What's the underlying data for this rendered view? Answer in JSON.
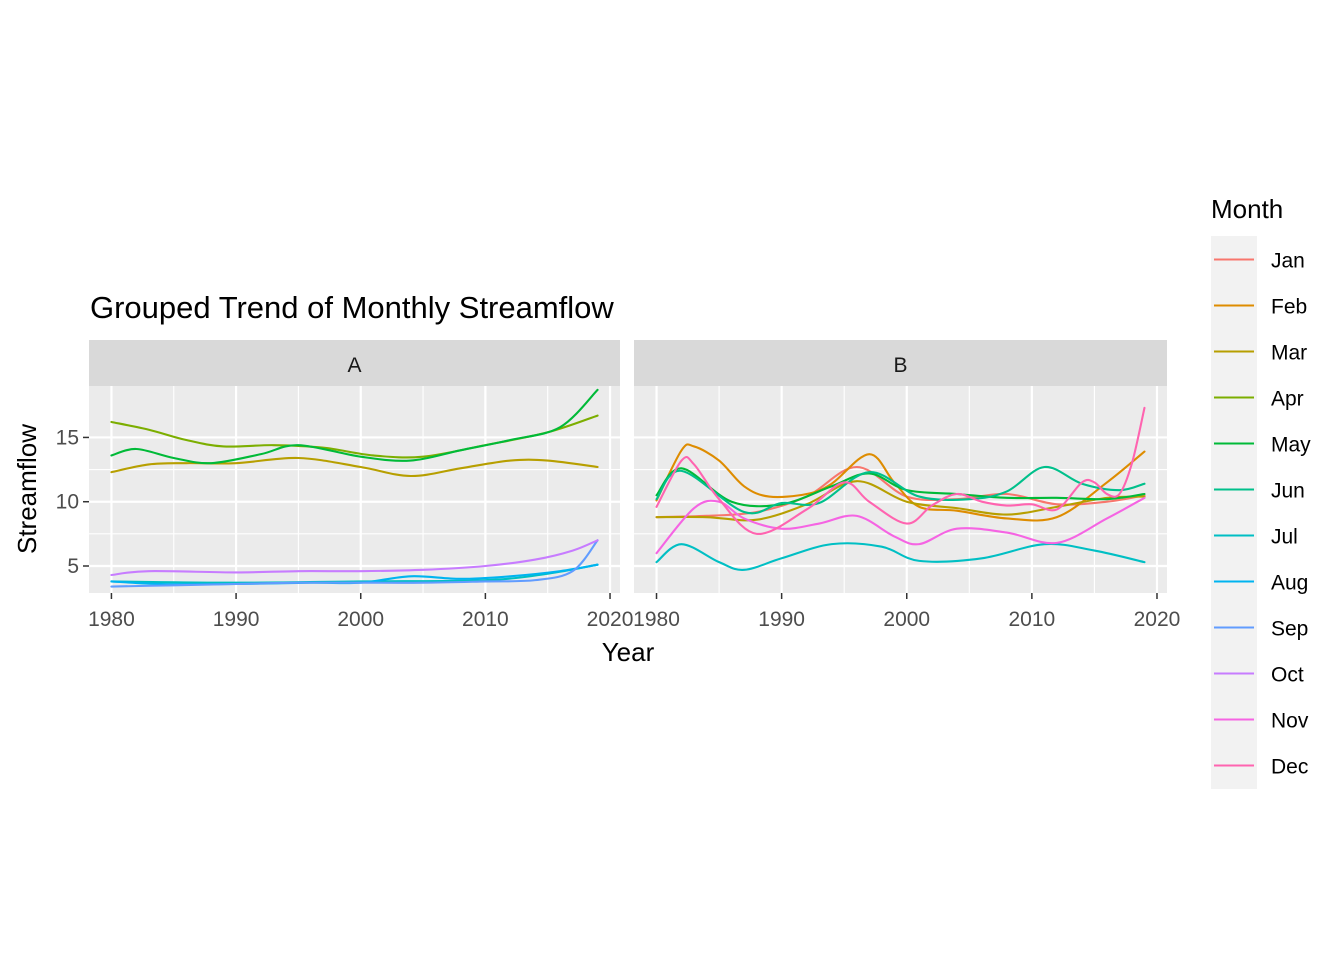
{
  "chart_data": {
    "type": "line",
    "title": "Grouped Trend of Monthly Streamflow",
    "xlabel": "Year",
    "ylabel": "Streamflow",
    "xlim": [
      1978.2,
      2020.8
    ],
    "ylim": [
      2.9,
      19.0
    ],
    "x_ticks": [
      1980,
      1990,
      2000,
      2010,
      2020
    ],
    "y_ticks": [
      5,
      10,
      15
    ],
    "grid": true,
    "legend": {
      "title": "Month",
      "position": "right",
      "items": [
        {
          "label": "Jan",
          "color": "#F8766D"
        },
        {
          "label": "Feb",
          "color": "#DE8C00"
        },
        {
          "label": "Mar",
          "color": "#B79F00"
        },
        {
          "label": "Apr",
          "color": "#7CAE00"
        },
        {
          "label": "May",
          "color": "#00BA38"
        },
        {
          "label": "Jun",
          "color": "#00C08B"
        },
        {
          "label": "Jul",
          "color": "#00BFC4"
        },
        {
          "label": "Aug",
          "color": "#00B4F0"
        },
        {
          "label": "Sep",
          "color": "#619CFF"
        },
        {
          "label": "Oct",
          "color": "#C77CFF"
        },
        {
          "label": "Nov",
          "color": "#F564E3"
        },
        {
          "label": "Dec",
          "color": "#FF64B0"
        }
      ]
    },
    "panels": [
      {
        "label": "A",
        "series": [
          {
            "name": "Mar",
            "color": "#B79F00",
            "x": [
              1980,
              1983,
              1986,
              1990,
              1995,
              2000,
              2004,
              2008,
              2012,
              2015,
              2019
            ],
            "y": [
              12.3,
              12.9,
              13.0,
              13.0,
              13.4,
              12.7,
              12.0,
              12.6,
              13.2,
              13.2,
              12.7
            ]
          },
          {
            "name": "Apr",
            "color": "#7CAE00",
            "x": [
              1980,
              1983,
              1986,
              1989,
              1993,
              1997,
              2001,
              2005,
              2010,
              2015,
              2019
            ],
            "y": [
              16.2,
              15.6,
              14.8,
              14.3,
              14.4,
              14.2,
              13.6,
              13.5,
              14.4,
              15.4,
              16.7
            ]
          },
          {
            "name": "May",
            "color": "#00BA38",
            "x": [
              1980,
              1982,
              1985,
              1988,
              1992,
              1995,
              2000,
              2004,
              2008,
              2012,
              2016,
              2019
            ],
            "y": [
              13.6,
              14.1,
              13.4,
              13.0,
              13.7,
              14.4,
              13.5,
              13.2,
              14.0,
              14.8,
              15.8,
              18.7
            ]
          },
          {
            "name": "Jul",
            "color": "#00BFC4",
            "x": [
              1980,
              1990,
              2000,
              2010,
              2015,
              2019
            ],
            "y": [
              3.8,
              3.7,
              3.8,
              3.9,
              4.4,
              5.1
            ]
          },
          {
            "name": "Aug",
            "color": "#00B4F0",
            "x": [
              1980,
              1984,
              1990,
              1996,
              2000,
              2004,
              2008,
              2012,
              2016,
              2019
            ],
            "y": [
              3.8,
              3.6,
              3.6,
              3.7,
              3.7,
              4.2,
              4.0,
              4.2,
              4.6,
              5.1
            ]
          },
          {
            "name": "Sep",
            "color": "#619CFF",
            "x": [
              1980,
              1985,
              1990,
              1995,
              2000,
              2005,
              2010,
              2014,
              2017,
              2019
            ],
            "y": [
              3.4,
              3.5,
              3.6,
              3.7,
              3.7,
              3.7,
              3.8,
              3.9,
              4.6,
              7.0
            ]
          },
          {
            "name": "Oct",
            "color": "#C77CFF",
            "x": [
              1980,
              1983,
              1990,
              1995,
              2000,
              2005,
              2010,
              2014,
              2017,
              2019
            ],
            "y": [
              4.3,
              4.6,
              4.5,
              4.6,
              4.6,
              4.7,
              5.0,
              5.5,
              6.2,
              7.0
            ]
          }
        ]
      },
      {
        "label": "B",
        "series": [
          {
            "name": "Jan",
            "color": "#F8766D",
            "x": [
              1980,
              1984,
              1988,
              1992,
              1996,
              2000,
              2004,
              2008,
              2012,
              2016,
              2019
            ],
            "y": [
              8.8,
              8.9,
              9.2,
              10.4,
              12.7,
              10.4,
              10.2,
              10.6,
              9.8,
              10.0,
              10.5
            ]
          },
          {
            "name": "Feb",
            "color": "#DE8C00",
            "x": [
              1980,
              1982,
              1983,
              1985,
              1987,
              1989,
              1992,
              1994,
              1997,
              1999,
              2001,
              2004,
              2008,
              2012,
              2016,
              2019
            ],
            "y": [
              10.1,
              14.0,
              14.3,
              13.2,
              11.2,
              10.4,
              10.6,
              11.4,
              13.7,
              11.5,
              9.6,
              9.3,
              8.7,
              8.8,
              11.5,
              13.9
            ]
          },
          {
            "name": "Mar",
            "color": "#B79F00",
            "x": [
              1980,
              1984,
              1988,
              1992,
              1996,
              2000,
              2004,
              2008,
              2012,
              2016,
              2019
            ],
            "y": [
              8.8,
              8.8,
              8.6,
              9.8,
              11.6,
              10.0,
              9.5,
              9.0,
              9.6,
              10.3,
              10.4
            ]
          },
          {
            "name": "May",
            "color": "#00BA38",
            "x": [
              1980,
              1982,
              1986,
              1990,
              1994,
              1997,
              2000,
              2004,
              2008,
              2012,
              2016,
              2019
            ],
            "y": [
              10.5,
              12.6,
              10.0,
              9.8,
              11.2,
              12.2,
              10.9,
              10.6,
              10.3,
              10.3,
              10.2,
              10.6
            ]
          },
          {
            "name": "Jun",
            "color": "#00C08B",
            "x": [
              1980,
              1982,
              1987,
              1990,
              1993,
              1997,
              2001,
              2005,
              2008,
              2011,
              2014,
              2017,
              2019
            ],
            "y": [
              10.2,
              12.4,
              9.2,
              9.9,
              9.9,
              12.3,
              10.4,
              10.2,
              10.8,
              12.7,
              11.4,
              10.9,
              11.4
            ]
          },
          {
            "name": "Jul",
            "color": "#00BFC4",
            "x": [
              1980,
              1982,
              1985,
              1987,
              1990,
              1994,
              1998,
              2001,
              2006,
              2011,
              2015,
              2019
            ],
            "y": [
              5.3,
              6.7,
              5.3,
              4.7,
              5.6,
              6.7,
              6.5,
              5.4,
              5.6,
              6.7,
              6.2,
              5.3
            ]
          },
          {
            "name": "Nov",
            "color": "#F564E3",
            "x": [
              1980,
              1983,
              1985,
              1987,
              1990,
              1993,
              1996,
              1999,
              2001,
              2004,
              2008,
              2012,
              2016,
              2019
            ],
            "y": [
              6.0,
              9.5,
              10.0,
              8.7,
              7.9,
              8.3,
              8.9,
              7.3,
              6.7,
              7.9,
              7.6,
              6.8,
              8.7,
              10.3
            ]
          },
          {
            "name": "Dec",
            "color": "#FF64B0",
            "x": [
              1980,
              1982,
              1983,
              1985,
              1988,
              1992,
              1995,
              1997,
              2000,
              2002,
              2004,
              2006,
              2008,
              2010,
              2012,
              2014,
              2015,
              2016,
              2017,
              2018,
              2019
            ],
            "y": [
              9.6,
              13.2,
              12.9,
              10.2,
              7.5,
              9.4,
              11.5,
              10.0,
              8.3,
              9.7,
              10.6,
              10.0,
              9.7,
              9.8,
              9.4,
              11.5,
              11.5,
              10.6,
              10.6,
              13.0,
              17.3
            ]
          }
        ]
      }
    ]
  }
}
